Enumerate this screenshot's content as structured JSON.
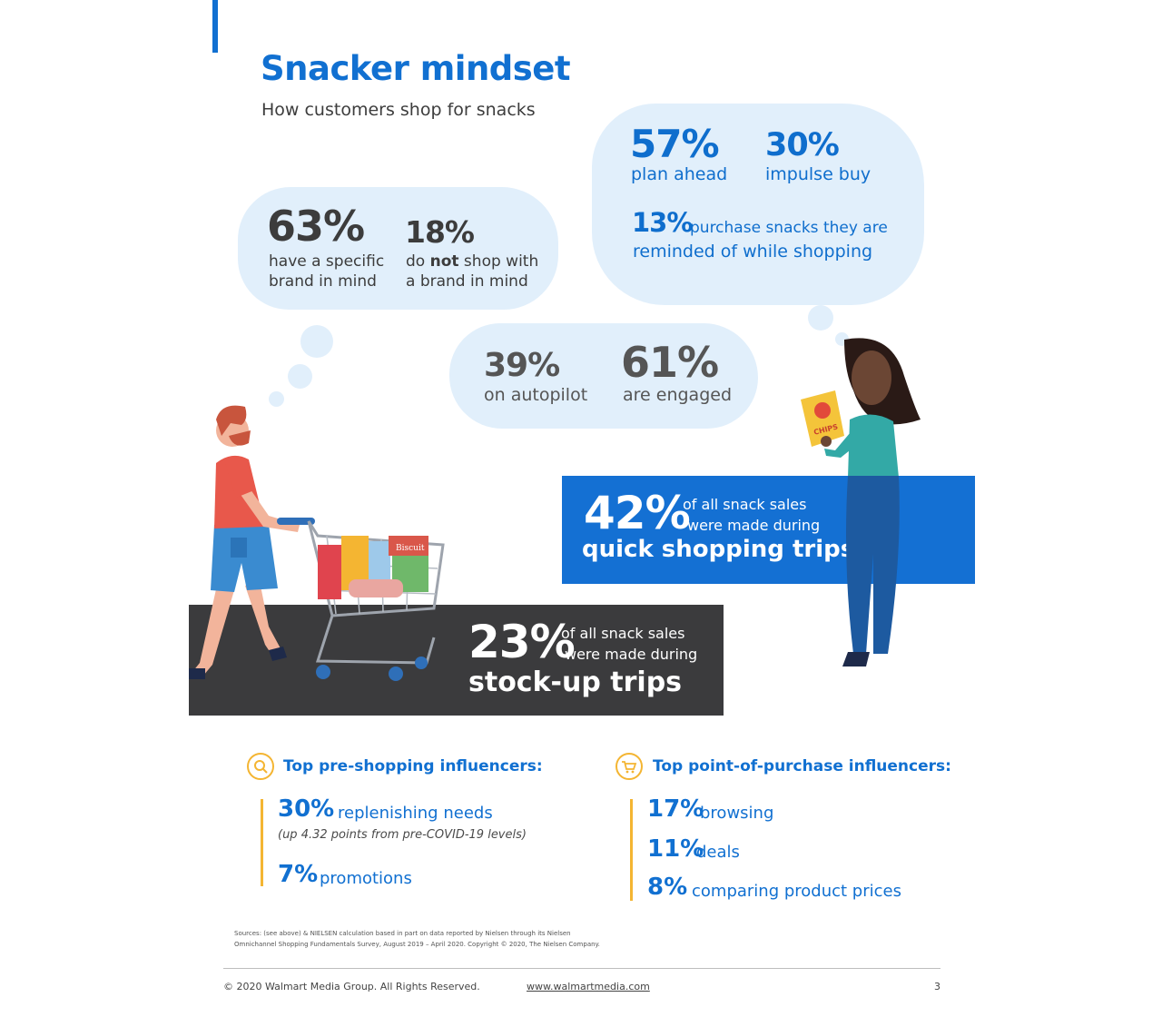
{
  "header": {
    "title": "Snacker mindset",
    "subtitle": "How customers shop for snacks"
  },
  "brand_bubble": {
    "stat1_value": "63%",
    "stat1_label_line1": "have a specific",
    "stat1_label_line2": "brand in mind",
    "stat2_value": "18%",
    "stat2_label_pre": "do ",
    "stat2_label_bold": "not",
    "stat2_label_post": " shop with",
    "stat2_label_line2": "a brand in mind"
  },
  "plan_bubble": {
    "stat1_value": "57%",
    "stat1_label": "plan ahead",
    "stat2_value": "30%",
    "stat2_label": "impulse buy",
    "stat3_value": "13%",
    "stat3_label_line1": "purchase snacks they are",
    "stat3_label_line2": "reminded of while shopping"
  },
  "engagement_bubble": {
    "stat1_value": "39%",
    "stat1_label": "on autopilot",
    "stat2_value": "61%",
    "stat2_label": "are engaged"
  },
  "quick_trips": {
    "value": "42%",
    "line1": "of all snack sales",
    "line2": "were made during",
    "headline": "quick shopping trips"
  },
  "stockup_trips": {
    "value": "23%",
    "line1": "of all snack sales",
    "line2": "were made during",
    "headline": "stock-up trips"
  },
  "cart_label": "Biscuit",
  "chips_label": "CHIPS",
  "pre_shopping": {
    "icon": "search-icon",
    "title": "Top pre-shopping influencers:",
    "items": [
      {
        "value": "30%",
        "label": "replenishing needs",
        "note": "(up 4.32 points from pre-COVID-19 levels)"
      },
      {
        "value": "7%",
        "label": "promotions"
      }
    ]
  },
  "point_of_purchase": {
    "icon": "cart-icon",
    "title": "Top point-of-purchase influencers:",
    "items": [
      {
        "value": "17%",
        "label": "browsing"
      },
      {
        "value": "11%",
        "label": "deals"
      },
      {
        "value": "8%",
        "label": "comparing product prices"
      }
    ]
  },
  "sources": {
    "line1": "Sources: (see above) & NIELSEN calculation based in part on data reported by Nielsen through its Nielsen",
    "line2": "Omnichannel Shopping Fundamentals Survey, August 2019 – April 2020. Copyright © 2020, The Nielsen Company."
  },
  "footer": {
    "copyright": "© 2020 Walmart Media Group. All Rights Reserved.",
    "url": "www.walmartmedia.com",
    "page": "3"
  },
  "colors": {
    "brand_blue": "#1170d1",
    "bubble_blue": "#e1effb",
    "dark_panel": "#3b3b3d",
    "accent_yellow": "#f4b532"
  }
}
